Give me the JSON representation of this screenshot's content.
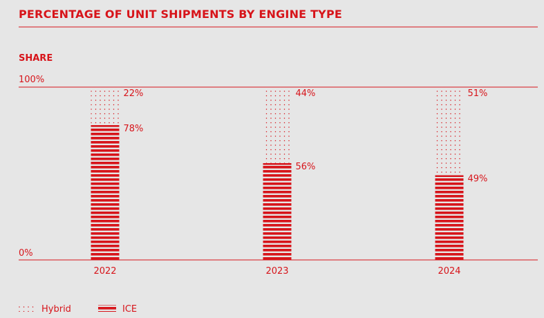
{
  "chart_data": {
    "type": "bar",
    "stacked": true,
    "title": "PERCENTAGE OF UNIT SHIPMENTS BY ENGINE TYPE",
    "subtitle": "SHARE",
    "categories": [
      "2022",
      "2023",
      "2024"
    ],
    "series": [
      {
        "name": "ICE",
        "values": [
          78,
          56,
          49
        ],
        "labels": [
          "78%",
          "56%",
          "49%"
        ],
        "pattern": "horizontal-stripes"
      },
      {
        "name": "Hybrid",
        "values": [
          22,
          44,
          51
        ],
        "labels": [
          "22%",
          "44%",
          "51%"
        ],
        "pattern": "dots"
      }
    ],
    "ylim": [
      0,
      100
    ],
    "y_tick_labels": [
      "0%",
      "100%"
    ],
    "grid": false,
    "legend_placement": "bottom-left",
    "colors": {
      "accent": "#d7141a",
      "background": "#e6e6e6"
    }
  }
}
